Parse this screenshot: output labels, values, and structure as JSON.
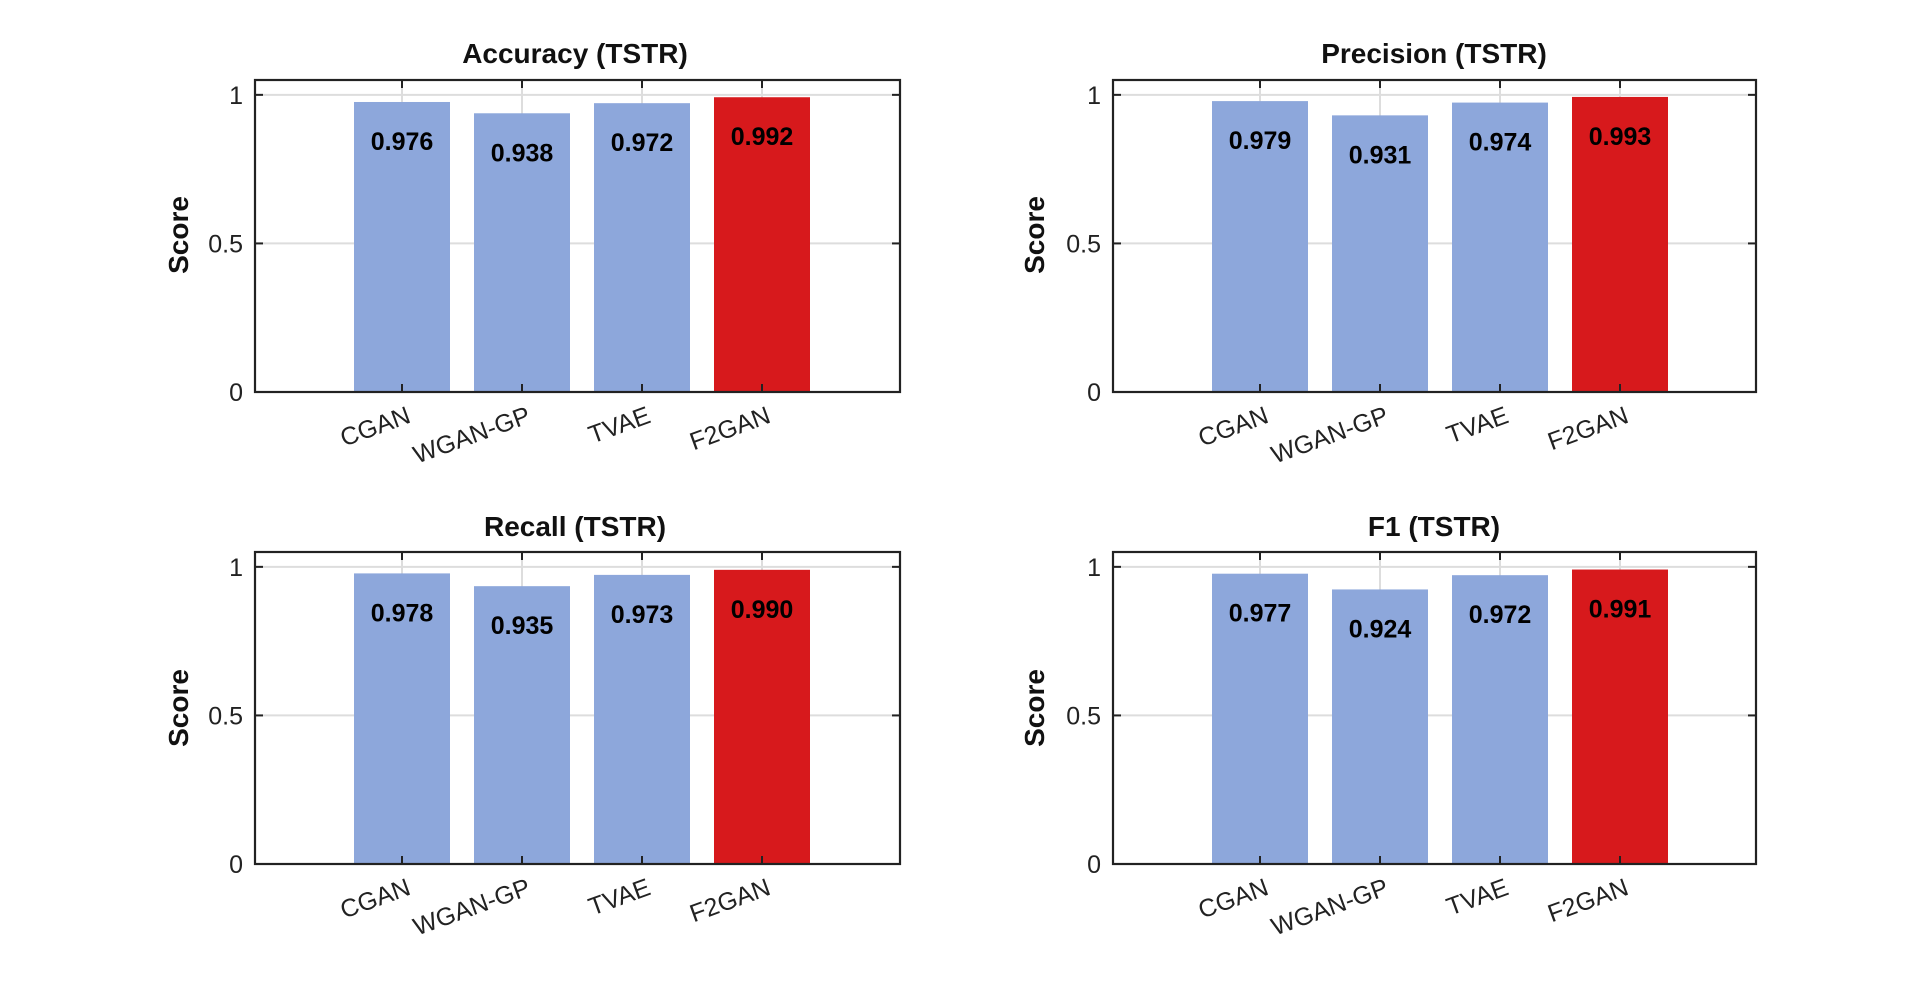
{
  "chart_data": [
    {
      "type": "bar",
      "title": "Accuracy (TSTR)",
      "ylabel": "Score",
      "ylim": [
        0,
        1.05
      ],
      "yticks": [
        "0",
        "0.5",
        "1"
      ],
      "categories": [
        "CGAN",
        "WGAN-GP",
        "TVAE",
        "F2GAN"
      ],
      "values": [
        0.976,
        0.938,
        0.972,
        0.992
      ],
      "value_labels": [
        "0.976",
        "0.938",
        "0.972",
        "0.992"
      ],
      "grid": true
    },
    {
      "type": "bar",
      "title": "Precision (TSTR)",
      "ylabel": "Score",
      "ylim": [
        0,
        1.05
      ],
      "yticks": [
        "0",
        "0.5",
        "1"
      ],
      "categories": [
        "CGAN",
        "WGAN-GP",
        "TVAE",
        "F2GAN"
      ],
      "values": [
        0.979,
        0.931,
        0.974,
        0.993
      ],
      "value_labels": [
        "0.979",
        "0.931",
        "0.974",
        "0.993"
      ],
      "grid": true
    },
    {
      "type": "bar",
      "title": "Recall (TSTR)",
      "ylabel": "Score",
      "ylim": [
        0,
        1.05
      ],
      "yticks": [
        "0",
        "0.5",
        "1"
      ],
      "categories": [
        "CGAN",
        "WGAN-GP",
        "TVAE",
        "F2GAN"
      ],
      "values": [
        0.978,
        0.935,
        0.973,
        0.99
      ],
      "value_labels": [
        "0.978",
        "0.935",
        "0.973",
        "0.990"
      ],
      "grid": true
    },
    {
      "type": "bar",
      "title": "F1 (TSTR)",
      "ylabel": "Score",
      "ylim": [
        0,
        1.05
      ],
      "yticks": [
        "0",
        "0.5",
        "1"
      ],
      "categories": [
        "CGAN",
        "WGAN-GP",
        "TVAE",
        "F2GAN"
      ],
      "values": [
        0.977,
        0.924,
        0.972,
        0.991
      ],
      "value_labels": [
        "0.977",
        "0.924",
        "0.972",
        "0.991"
      ],
      "grid": true
    }
  ],
  "colors": {
    "baseline_bar": "#8da7db",
    "highlight_bar": "#d7191c",
    "highlight_category": "F2GAN"
  }
}
